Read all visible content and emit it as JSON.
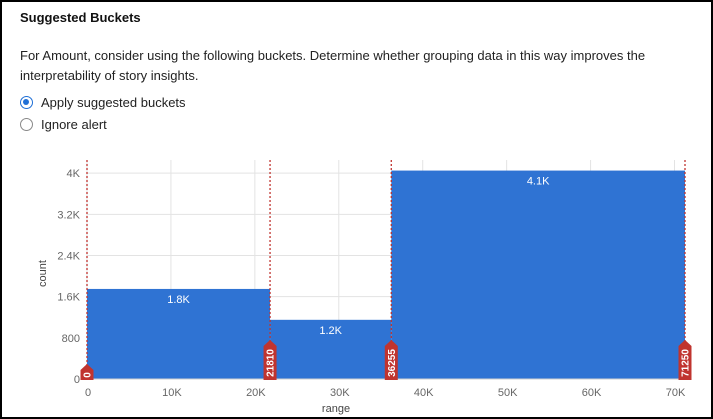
{
  "panel": {
    "title": "Suggested Buckets",
    "description": "For Amount, consider using the following buckets. Determine whether grouping data in this way improves the interpretability of story insights.",
    "options": [
      {
        "label": "Apply suggested buckets",
        "selected": true
      },
      {
        "label": "Ignore alert",
        "selected": false
      }
    ]
  },
  "chart_data": {
    "type": "bar",
    "xlabel": "range",
    "ylabel": "count",
    "xlim": [
      0,
      71250
    ],
    "ylim": [
      0,
      4100
    ],
    "x_ticks": [
      {
        "value": 0,
        "label": "0"
      },
      {
        "value": 10000,
        "label": "10K"
      },
      {
        "value": 20000,
        "label": "20K"
      },
      {
        "value": 30000,
        "label": "30K"
      },
      {
        "value": 40000,
        "label": "40K"
      },
      {
        "value": 50000,
        "label": "50K"
      },
      {
        "value": 60000,
        "label": "60K"
      },
      {
        "value": 70000,
        "label": "70K"
      }
    ],
    "y_ticks": [
      {
        "value": 0,
        "label": "0"
      },
      {
        "value": 800,
        "label": "800"
      },
      {
        "value": 1600,
        "label": "1.6K"
      },
      {
        "value": 2400,
        "label": "2.4K"
      },
      {
        "value": 3200,
        "label": "3.2K"
      },
      {
        "value": 4000,
        "label": "4K"
      }
    ],
    "buckets": [
      {
        "start": 0,
        "end": 21810,
        "value": 1750,
        "label": "1.8K"
      },
      {
        "start": 21810,
        "end": 36255,
        "value": 1150,
        "label": "1.2K"
      },
      {
        "start": 36255,
        "end": 71250,
        "value": 4050,
        "label": "4.1K"
      }
    ],
    "boundaries": [
      {
        "value": 0,
        "label": "0"
      },
      {
        "value": 21810,
        "label": "21810"
      },
      {
        "value": 36255,
        "label": "36255"
      },
      {
        "value": 71250,
        "label": "71250"
      }
    ],
    "colors": {
      "bar": "#2f73d3",
      "boundary": "#c0342f",
      "grid": "#e3e3e3"
    },
    "grid": true
  }
}
